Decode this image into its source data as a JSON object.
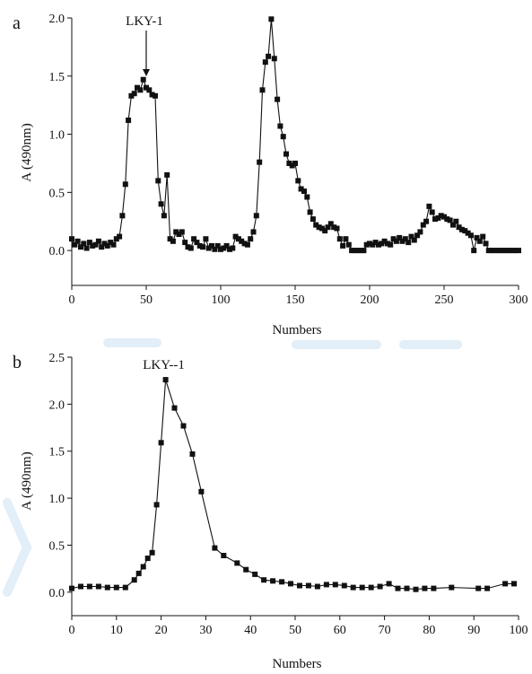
{
  "chart_data": [
    {
      "type": "scatter",
      "panel_label": "a",
      "xlabel": "Numbers",
      "ylabel": "A (490nm)",
      "xlim": [
        0,
        300
      ],
      "ylim": [
        -0.3,
        2.0
      ],
      "xticks": [
        0,
        50,
        100,
        150,
        200,
        250,
        300
      ],
      "yticks": [
        0.0,
        0.5,
        1.0,
        1.5,
        2.0
      ],
      "xtick_labels": [
        "0",
        "50",
        "100",
        "150",
        "200",
        "250",
        "300"
      ],
      "ytick_labels": [
        "0.0",
        "0.5",
        "1.0",
        "1.5",
        "2.0"
      ],
      "annotation": {
        "text": "LKY-1",
        "x": 50,
        "y": 1.46,
        "arrow": true
      },
      "series": [
        {
          "x": [
            0,
            2,
            4,
            6,
            8,
            10,
            12,
            14,
            16,
            18,
            20,
            22,
            24,
            26,
            28,
            30,
            32,
            34,
            36,
            38,
            40,
            42,
            44,
            46,
            48,
            50,
            52,
            54,
            56,
            58,
            60,
            62,
            64,
            66,
            68,
            70,
            72,
            74,
            76,
            78,
            80,
            82,
            84,
            86,
            88,
            90,
            92,
            94,
            96,
            98,
            100,
            102,
            104,
            106,
            108,
            110,
            112,
            114,
            116,
            118,
            120,
            122,
            124,
            126,
            128,
            130,
            132,
            134,
            136,
            138,
            140,
            142,
            144,
            146,
            148,
            150,
            152,
            154,
            156,
            158,
            160,
            162,
            164,
            166,
            168,
            170,
            172,
            174,
            176,
            178,
            180,
            182,
            184,
            186,
            188,
            190,
            192,
            194,
            196,
            198,
            200,
            202,
            204,
            206,
            208,
            210,
            212,
            214,
            216,
            218,
            220,
            222,
            224,
            226,
            228,
            230,
            232,
            234,
            236,
            238,
            240,
            242,
            244,
            246,
            248,
            250,
            252,
            254,
            256,
            258,
            260,
            262,
            264,
            266,
            268,
            270,
            272,
            274,
            276,
            278,
            280,
            282,
            284,
            286,
            288,
            290,
            292,
            294,
            296,
            298,
            300
          ],
          "y": [
            0.1,
            0.05,
            0.08,
            0.03,
            0.06,
            0.02,
            0.07,
            0.04,
            0.05,
            0.08,
            0.03,
            0.06,
            0.04,
            0.07,
            0.05,
            0.1,
            0.12,
            0.3,
            0.57,
            1.12,
            1.33,
            1.35,
            1.4,
            1.38,
            1.47,
            1.4,
            1.38,
            1.34,
            1.33,
            0.6,
            0.4,
            0.3,
            0.65,
            0.1,
            0.08,
            0.16,
            0.14,
            0.16,
            0.07,
            0.03,
            0.02,
            0.1,
            0.07,
            0.04,
            0.03,
            0.1,
            0.02,
            0.04,
            0.01,
            0.04,
            0.01,
            0.02,
            0.04,
            0.01,
            0.02,
            0.12,
            0.1,
            0.08,
            0.06,
            0.05,
            0.1,
            0.16,
            0.3,
            0.76,
            1.38,
            1.62,
            1.67,
            1.99,
            1.65,
            1.3,
            1.07,
            0.98,
            0.83,
            0.75,
            0.73,
            0.75,
            0.6,
            0.53,
            0.51,
            0.46,
            0.33,
            0.27,
            0.22,
            0.2,
            0.19,
            0.17,
            0.2,
            0.23,
            0.2,
            0.19,
            0.1,
            0.04,
            0.1,
            0.05,
            0.0,
            0.0,
            0.0,
            0.0,
            0.0,
            0.05,
            0.06,
            0.05,
            0.07,
            0.05,
            0.06,
            0.08,
            0.06,
            0.05,
            0.1,
            0.08,
            0.11,
            0.08,
            0.1,
            0.07,
            0.12,
            0.09,
            0.13,
            0.16,
            0.22,
            0.25,
            0.38,
            0.33,
            0.27,
            0.28,
            0.3,
            0.29,
            0.27,
            0.26,
            0.22,
            0.25,
            0.2,
            0.18,
            0.17,
            0.15,
            0.13,
            0.0,
            0.11,
            0.08,
            0.12,
            0.06,
            0.0,
            0.0,
            0.0,
            0.0,
            0.0,
            0.0,
            0.0,
            0.0,
            0.0,
            0.0,
            0.0
          ]
        }
      ]
    },
    {
      "type": "scatter",
      "panel_label": "b",
      "xlabel": "Numbers",
      "ylabel": "A (490nm)",
      "xlim": [
        0,
        100
      ],
      "ylim": [
        -0.25,
        2.5
      ],
      "xticks": [
        0,
        10,
        20,
        30,
        40,
        50,
        60,
        70,
        80,
        90,
        100
      ],
      "yticks": [
        0.0,
        0.5,
        1.0,
        1.5,
        2.0,
        2.5
      ],
      "xtick_labels": [
        "0",
        "10",
        "20",
        "30",
        "40",
        "50",
        "60",
        "70",
        "80",
        "90",
        "100"
      ],
      "ytick_labels": [
        "0.0",
        "0.5",
        "1.0",
        "1.5",
        "2.0",
        "2.5"
      ],
      "annotation": {
        "text": "LKY--1",
        "x": 21,
        "y": 2.26,
        "arrow": false
      },
      "series": [
        {
          "x": [
            0,
            2,
            4,
            6,
            8,
            10,
            12,
            14,
            15,
            16,
            17,
            18,
            19,
            20,
            21,
            23,
            25,
            27,
            29,
            32,
            34,
            37,
            39,
            41,
            43,
            45,
            47,
            49,
            51,
            53,
            55,
            57,
            59,
            61,
            63,
            65,
            67,
            69,
            71,
            73,
            75,
            77,
            79,
            81,
            85,
            91,
            93,
            97,
            99
          ],
          "y": [
            0.04,
            0.06,
            0.06,
            0.06,
            0.05,
            0.05,
            0.05,
            0.13,
            0.2,
            0.27,
            0.36,
            0.42,
            0.93,
            1.59,
            2.26,
            1.96,
            1.77,
            1.47,
            1.07,
            0.47,
            0.39,
            0.31,
            0.24,
            0.19,
            0.13,
            0.12,
            0.11,
            0.09,
            0.07,
            0.07,
            0.06,
            0.08,
            0.08,
            0.07,
            0.05,
            0.05,
            0.05,
            0.06,
            0.09,
            0.04,
            0.04,
            0.03,
            0.04,
            0.04,
            0.05,
            0.04,
            0.04,
            0.09,
            0.09
          ]
        }
      ]
    }
  ]
}
